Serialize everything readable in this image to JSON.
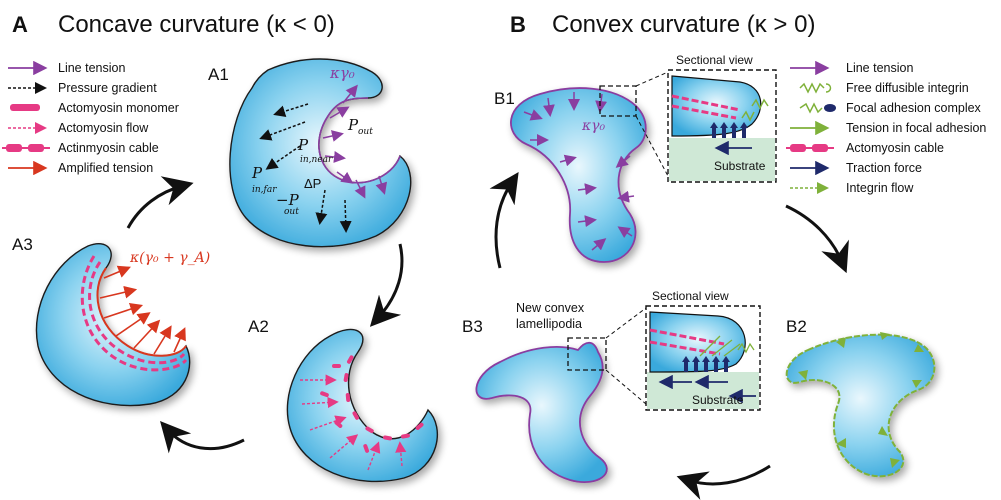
{
  "panel_a": {
    "letter": "A",
    "title": "Concave curvature (κ < 0)",
    "legend": [
      {
        "label": "Line tension",
        "icon": "purple-arrow-icon"
      },
      {
        "label": "Pressure gradient",
        "icon": "black-dashed-arrow-icon"
      },
      {
        "label": "Actomyosin monomer",
        "icon": "pink-dash-icon"
      },
      {
        "label": "Actomyosin flow",
        "icon": "pink-dashed-arrow-icon"
      },
      {
        "label": "Actinmyosin cable",
        "icon": "pink-cable-icon"
      },
      {
        "label": "Amplified tension",
        "icon": "red-arrow-icon"
      }
    ],
    "sublabels": {
      "a1": "A1",
      "a2": "A2",
      "a3": "A3"
    },
    "a1_text": {
      "kgamma": "κγ₀",
      "pout": "P",
      "pout_sub": "out",
      "pin_near": "P",
      "pin_near_sub": "in,near",
      "delta_p": "ΔP",
      "pin_far": "P",
      "pin_far_sub": "in,far",
      "minus_pout": "−P",
      "minus_pout_sub": "out"
    },
    "a3_text": "κ(γ₀ + γ_A)"
  },
  "panel_b": {
    "letter": "B",
    "title": "Convex curvature (κ > 0)",
    "legend": [
      {
        "label": "Line tension",
        "icon": "purple-arrow-icon"
      },
      {
        "label": "Free diffusible integrin",
        "icon": "green-integrin-icon"
      },
      {
        "label": "Focal adhesion complex",
        "icon": "navy-adhesion-icon"
      },
      {
        "label": "Tension in focal adhesion",
        "icon": "green-arrow-icon"
      },
      {
        "label": "Actomyosin cable",
        "icon": "pink-cable-icon"
      },
      {
        "label": "Traction force",
        "icon": "navy-arrow-icon"
      },
      {
        "label": "Integrin flow",
        "icon": "green-dashed-arrow-icon"
      }
    ],
    "sublabels": {
      "b1": "B1",
      "b2": "B2",
      "b3": "B3"
    },
    "b1_text": {
      "kgamma": "κγ₀"
    },
    "sectional_view_1": "Sectional view",
    "sectional_view_2": "Sectional view",
    "substrate_1": "Substrate",
    "substrate_2": "Substrate",
    "new_convex_1": "New convex",
    "new_convex_2": "lamellipodia"
  },
  "colors": {
    "cell_fill": "#5bbde6",
    "purple": "#8a3ea0",
    "pink": "#e63a84",
    "red": "#d8371f",
    "green": "#7fb13a",
    "navy": "#1f2a6b",
    "substrate": "#cfe8d6"
  }
}
